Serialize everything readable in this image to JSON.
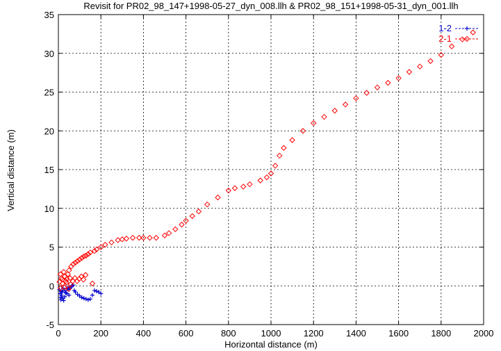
{
  "chart_data": {
    "type": "scatter",
    "title": "Revisit for PR02_98_147+1998-05-27_dyn_008.llh & PR02_98_151+1998-05-31_dyn_001.llh",
    "xlabel": "Horizontal distance (m)",
    "ylabel": "Vertical distance (m)",
    "xlim": [
      0,
      2000
    ],
    "ylim": [
      -5,
      35
    ],
    "x_ticks": [
      "0",
      "200",
      "400",
      "600",
      "800",
      "1000",
      "1200",
      "1400",
      "1600",
      "1800",
      "2000"
    ],
    "y_ticks": [
      "-5",
      "0",
      "5",
      "10",
      "15",
      "20",
      "25",
      "30",
      "35"
    ],
    "grid": true,
    "legend_position": "top-right",
    "series": [
      {
        "name": "1-2",
        "color": "#0000cc",
        "marker": "plus",
        "points": [
          [
            5,
            -0.5
          ],
          [
            8,
            -1.0
          ],
          [
            10,
            -1.5
          ],
          [
            12,
            -1.8
          ],
          [
            15,
            -1.2
          ],
          [
            18,
            -0.8
          ],
          [
            20,
            -1.6
          ],
          [
            25,
            -1.9
          ],
          [
            30,
            -1.4
          ],
          [
            35,
            -0.9
          ],
          [
            40,
            -0.4
          ],
          [
            45,
            -0.2
          ],
          [
            50,
            -0.5
          ],
          [
            55,
            -0.3
          ],
          [
            60,
            -0.1
          ],
          [
            65,
            0.0
          ],
          [
            70,
            0.1
          ],
          [
            75,
            -0.6
          ],
          [
            80,
            -0.8
          ],
          [
            90,
            -1.1
          ],
          [
            100,
            -1.3
          ],
          [
            110,
            -1.5
          ],
          [
            120,
            -1.6
          ],
          [
            130,
            -1.7
          ],
          [
            140,
            -1.8
          ],
          [
            150,
            -1.7
          ],
          [
            160,
            -1.2
          ],
          [
            170,
            -0.6
          ],
          [
            180,
            -0.7
          ],
          [
            190,
            -0.8
          ],
          [
            200,
            -1.0
          ],
          [
            30,
            -0.6
          ],
          [
            40,
            -1.0
          ],
          [
            50,
            -1.2
          ],
          [
            22,
            -0.3
          ],
          [
            14,
            -0.7
          ]
        ]
      },
      {
        "name": "2-1",
        "color": "#ff0000",
        "marker": "diamond",
        "points": [
          [
            5,
            0.5
          ],
          [
            10,
            1.5
          ],
          [
            15,
            1.0
          ],
          [
            20,
            0.3
          ],
          [
            25,
            1.8
          ],
          [
            30,
            1.2
          ],
          [
            35,
            0.6
          ],
          [
            40,
            0.9
          ],
          [
            45,
            1.5
          ],
          [
            50,
            2.0
          ],
          [
            55,
            1.0
          ],
          [
            60,
            2.5
          ],
          [
            70,
            2.8
          ],
          [
            80,
            3.0
          ],
          [
            90,
            3.2
          ],
          [
            100,
            3.4
          ],
          [
            110,
            3.6
          ],
          [
            120,
            3.8
          ],
          [
            130,
            3.9
          ],
          [
            140,
            4.1
          ],
          [
            150,
            4.3
          ],
          [
            160,
            0.3
          ],
          [
            170,
            4.5
          ],
          [
            180,
            4.7
          ],
          [
            200,
            5.0
          ],
          [
            220,
            5.3
          ],
          [
            250,
            5.6
          ],
          [
            280,
            5.9
          ],
          [
            300,
            6.0
          ],
          [
            320,
            6.1
          ],
          [
            350,
            6.2
          ],
          [
            380,
            6.2
          ],
          [
            400,
            6.2
          ],
          [
            430,
            6.2
          ],
          [
            460,
            6.2
          ],
          [
            500,
            6.5
          ],
          [
            520,
            6.8
          ],
          [
            550,
            7.3
          ],
          [
            580,
            7.9
          ],
          [
            600,
            8.4
          ],
          [
            630,
            9.0
          ],
          [
            660,
            9.6
          ],
          [
            700,
            10.5
          ],
          [
            750,
            11.4
          ],
          [
            800,
            12.3
          ],
          [
            830,
            12.6
          ],
          [
            870,
            12.8
          ],
          [
            900,
            13.1
          ],
          [
            950,
            13.6
          ],
          [
            980,
            14.0
          ],
          [
            1000,
            14.5
          ],
          [
            1020,
            15.5
          ],
          [
            1040,
            16.8
          ],
          [
            1060,
            17.8
          ],
          [
            1100,
            18.8
          ],
          [
            1150,
            20.0
          ],
          [
            1200,
            21.0
          ],
          [
            1250,
            21.8
          ],
          [
            1300,
            22.6
          ],
          [
            1350,
            23.4
          ],
          [
            1400,
            24.2
          ],
          [
            1450,
            24.9
          ],
          [
            1500,
            25.6
          ],
          [
            1550,
            26.2
          ],
          [
            1600,
            26.8
          ],
          [
            1650,
            27.6
          ],
          [
            1700,
            28.3
          ],
          [
            1750,
            29.0
          ],
          [
            1800,
            29.8
          ],
          [
            1850,
            30.9
          ],
          [
            1900,
            31.8
          ],
          [
            1950,
            32.7
          ],
          [
            10,
            -0.3
          ],
          [
            18,
            0.8
          ],
          [
            28,
            -0.2
          ],
          [
            38,
            0.4
          ],
          [
            48,
            -0.4
          ],
          [
            58,
            0.2
          ],
          [
            68,
            0.6
          ],
          [
            78,
            1.0
          ],
          [
            88,
            0.6
          ],
          [
            98,
            0.9
          ],
          [
            108,
            1.2
          ],
          [
            118,
            0.8
          ],
          [
            128,
            1.4
          ]
        ]
      }
    ]
  }
}
